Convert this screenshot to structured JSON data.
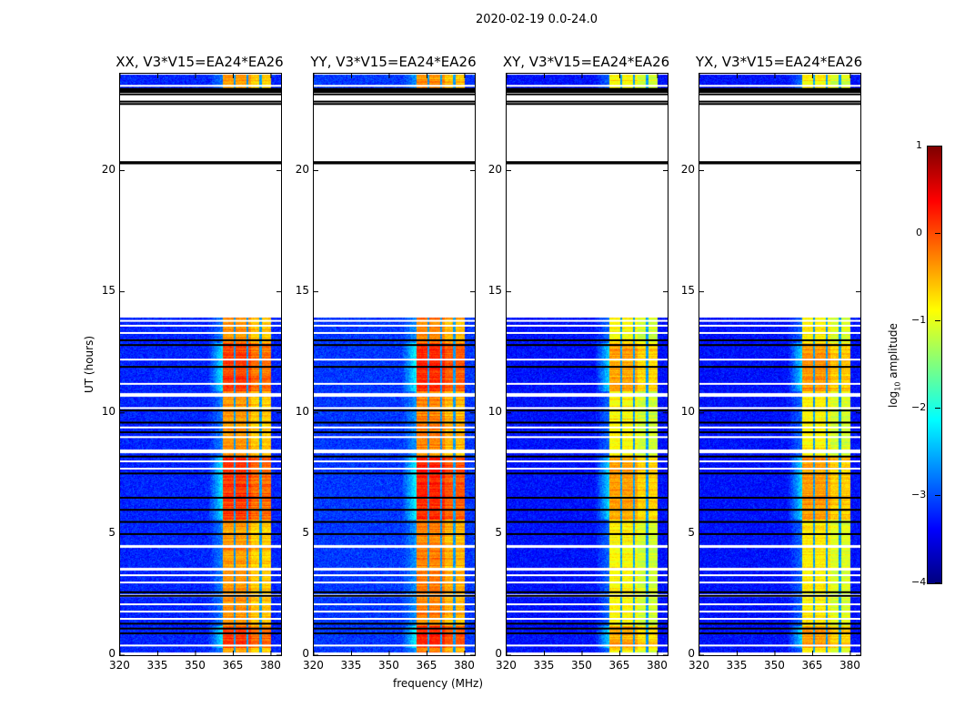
{
  "chart_data": {
    "type": "heatmap",
    "title": "2020-02-19 0.0-24.0",
    "xlabel": "frequency (MHz)",
    "ylabel": "UT (hours)",
    "xlim": [
      320,
      384
    ],
    "ylim": [
      0,
      24
    ],
    "xticks": [
      "320",
      "335",
      "350",
      "365",
      "380"
    ],
    "xtick_values": [
      320,
      335,
      350,
      365,
      380
    ],
    "yticks": [
      "0",
      "5",
      "10",
      "15",
      "20"
    ],
    "ytick_values": [
      0,
      5,
      10,
      15,
      20
    ],
    "colorbar": {
      "label_main": "log",
      "label_sub": "10",
      "label_rest": " amplitude",
      "range": [
        -4,
        1
      ],
      "ticks": [
        "1",
        "0",
        "−1",
        "−2",
        "−3",
        "−4"
      ],
      "tick_values": [
        1,
        0,
        -1,
        -2,
        -3,
        -4
      ],
      "colormap": "jet"
    },
    "panels": [
      {
        "title": "XX, V3*V15=EA24*EA26",
        "background": -3.2,
        "band_level": -0.35
      },
      {
        "title": "YY, V3*V15=EA24*EA26",
        "background": -3.1,
        "band_level": -0.25
      },
      {
        "title": "XY, V3*V15=EA24*EA26",
        "background": -3.3,
        "band_level": -0.85
      },
      {
        "title": "YX, V3*V15=EA24*EA26",
        "background": -3.3,
        "band_level": -0.8
      }
    ],
    "band_mhz": [
      361,
      380
    ],
    "band_gaps_mhz": [
      365.6,
      370.6,
      375.8
    ],
    "data_segments_hours": [
      [
        0.1,
        2.4
      ],
      [
        2.5,
        3.5
      ],
      [
        3.6,
        4.45
      ],
      [
        4.55,
        8.35
      ],
      [
        8.5,
        10.65
      ],
      [
        10.8,
        13.95
      ],
      [
        23.35,
        23.95
      ]
    ],
    "strong_periods_hours": [
      [
        0.3,
        1.2
      ],
      [
        5.6,
        8.2
      ],
      [
        10.9,
        12.9
      ]
    ],
    "flag_white_hours": [
      0.4,
      1.5,
      1.8,
      2.1,
      3.0,
      3.3,
      7.7,
      8.0,
      9.0,
      9.4,
      10.2,
      11.2,
      12.2,
      13.3,
      13.6,
      13.8,
      23.5
    ],
    "flag_black_hours": [
      0.9,
      1.1,
      1.3,
      2.45,
      2.6,
      5.0,
      5.5,
      6.0,
      6.5,
      7.5,
      8.2,
      9.2,
      9.6,
      10.1,
      11.9,
      12.8,
      13.0,
      20.3,
      20.35,
      22.75,
      22.85,
      23.15,
      23.25
    ]
  }
}
